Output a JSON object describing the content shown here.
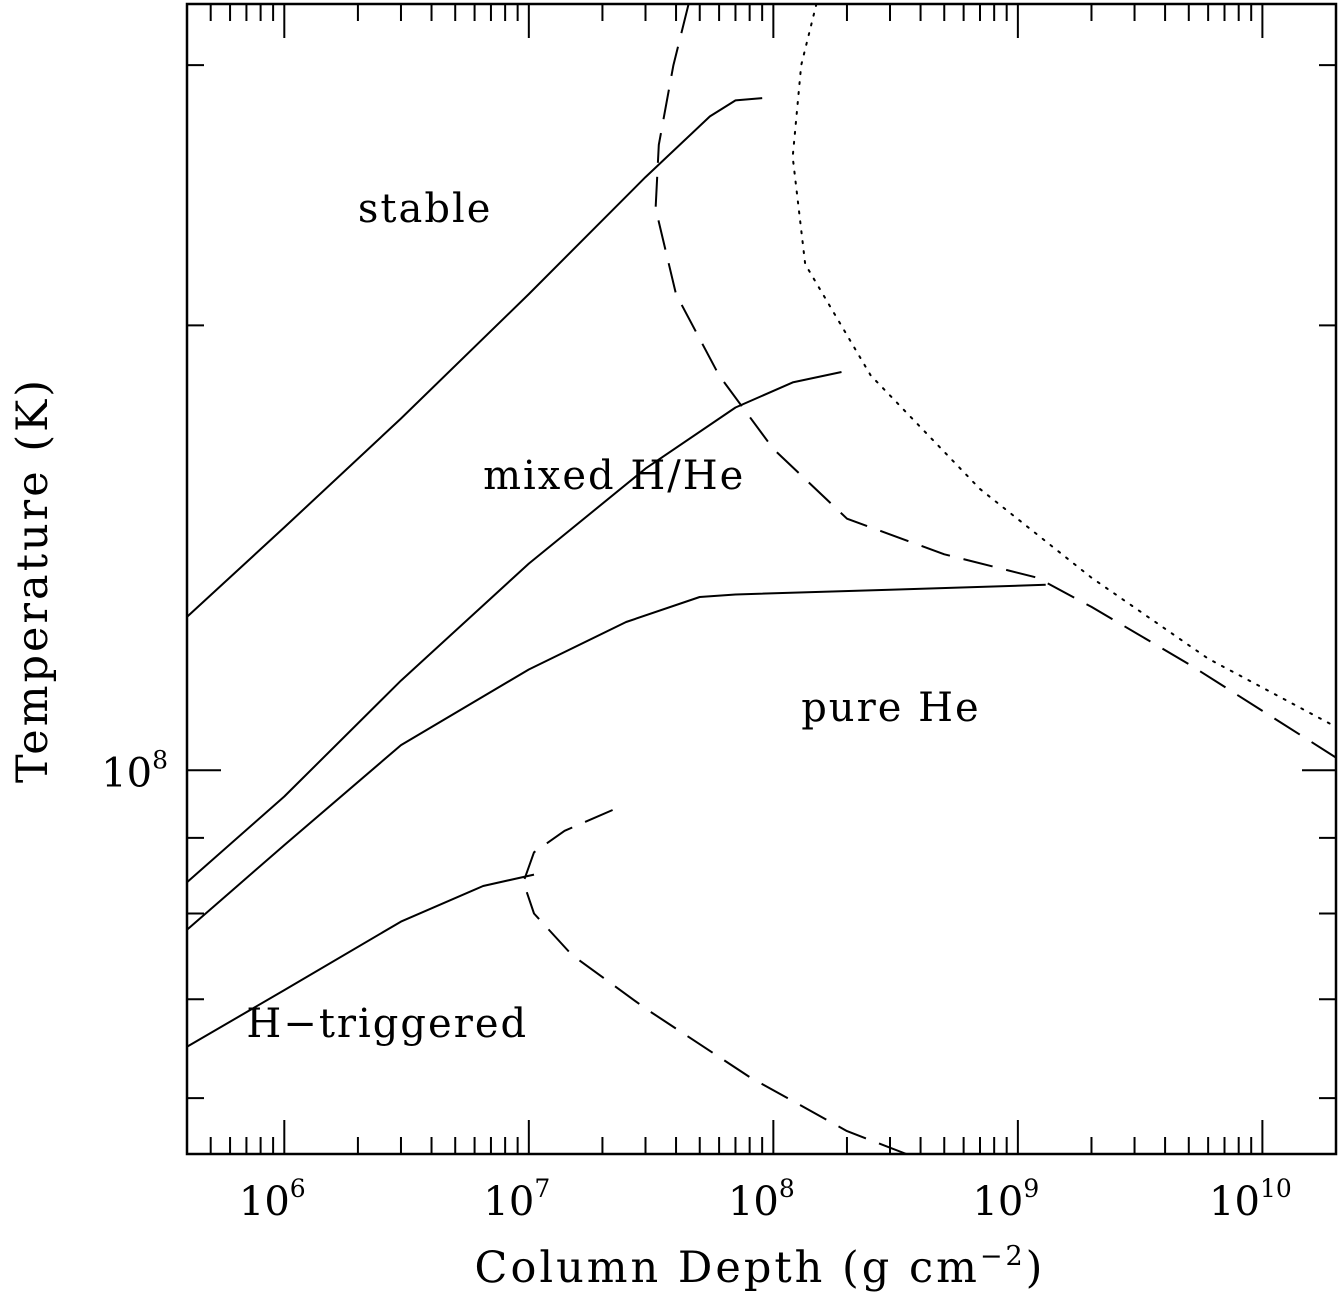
{
  "chart_data": {
    "type": "line",
    "title": "",
    "xlabel": "Column Depth (g cm",
    "xlabel_exp": "−2",
    "xlabel_tail": ")",
    "ylabel": "Temperature (K)",
    "x_scale": "log",
    "y_scale": "log",
    "xlim": [
      400000,
      20000000000
    ],
    "ylim": [
      55000000,
      330000000
    ],
    "grid": false,
    "legend": "none",
    "x_ticks": [
      {
        "value": 1000000,
        "base": "10",
        "exp": "6"
      },
      {
        "value": 10000000,
        "base": "10",
        "exp": "7"
      },
      {
        "value": 100000000,
        "base": "10",
        "exp": "8"
      },
      {
        "value": 1000000000,
        "base": "10",
        "exp": "9"
      },
      {
        "value": 10000000000,
        "base": "10",
        "exp": "10"
      }
    ],
    "y_ticks": [
      {
        "value": 100000000,
        "base": "10",
        "exp": "8"
      }
    ],
    "annotations": [
      {
        "text": "stable",
        "x": 2000000,
        "y": 235000000
      },
      {
        "text": "mixed H/He",
        "x": 6500000,
        "y": 155000000
      },
      {
        "text": "pure He",
        "x": 130000000,
        "y": 108000000
      },
      {
        "text": "H−triggered",
        "x": 700000,
        "y": 66000000
      }
    ],
    "series": [
      {
        "style": "solid",
        "x": [
          400000,
          1000000,
          3000000,
          10000000,
          30000000,
          55000000,
          70000000,
          90000000
        ],
        "y": [
          127000000,
          146000000,
          173000000,
          210000000,
          252000000,
          277000000,
          284000000,
          285000000
        ]
      },
      {
        "style": "solid",
        "x": [
          400000,
          1000000,
          3000000,
          10000000,
          30000000,
          70000000,
          120000000,
          190000000
        ],
        "y": [
          84000000,
          96000000,
          115000000,
          138000000,
          160000000,
          176000000,
          183000000,
          186000000
        ]
      },
      {
        "style": "solid",
        "x": [
          400000,
          1000000,
          3000000,
          10000000,
          25000000,
          50000000,
          70000000,
          300000000,
          1300000000
        ],
        "y": [
          78000000,
          89000000,
          104000000,
          117000000,
          126000000,
          131000000,
          131500000,
          132500000,
          133500000
        ]
      },
      {
        "style": "solid",
        "x": [
          400000,
          1000000,
          3000000,
          6500000,
          10500000
        ],
        "y": [
          65000000,
          71000000,
          79000000,
          83500000,
          85000000
        ]
      },
      {
        "style": "dashed",
        "x": [
          45000000,
          39000000,
          34000000,
          33000000,
          40000000,
          60000000,
          100000000,
          200000000,
          500000000,
          1200000000,
          2000000000,
          5000000000,
          20000000000
        ],
        "y": [
          330000000,
          300000000,
          265000000,
          240000000,
          210000000,
          185000000,
          165000000,
          148000000,
          140000000,
          135000000,
          129000000,
          118000000,
          102000000
        ]
      },
      {
        "style": "dashed",
        "x": [
          22000000,
          14000000,
          10500000,
          9500000,
          10500000,
          15000000,
          30000000,
          80000000,
          200000000,
          350000000
        ],
        "y": [
          94000000,
          91000000,
          88000000,
          84000000,
          80000000,
          75000000,
          69000000,
          62000000,
          57000000,
          55000000
        ]
      },
      {
        "style": "dotted",
        "x": [
          150000000,
          130000000,
          120000000,
          135000000,
          250000000,
          700000000,
          2000000000,
          6000000000,
          20000000000
        ],
        "y": [
          330000000,
          300000000,
          260000000,
          220000000,
          185000000,
          155000000,
          135000000,
          119000000,
          107000000
        ]
      }
    ]
  }
}
